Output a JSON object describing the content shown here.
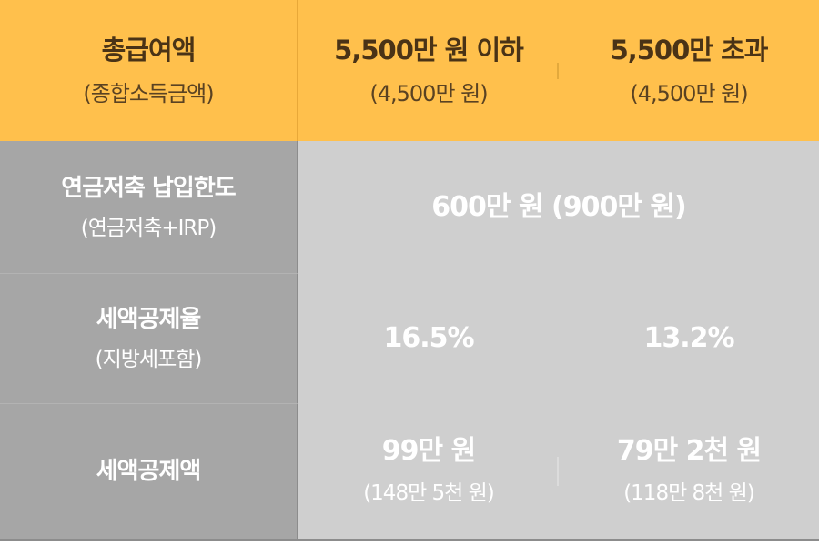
{
  "header": {
    "label_title": "총급여액",
    "label_sub": "(종합소득금액)",
    "col1_title": "5,500만 원 이하",
    "col1_sub": "(4,500만 원)",
    "col2_title": "5,500만 초과",
    "col2_sub": "(4,500만 원)"
  },
  "rows": [
    {
      "label_title": "연금저축 납입한도",
      "label_sub": "(연금저축+IRP)",
      "value": "600만 원 (900만 원)"
    },
    {
      "label_title": "세액공제율",
      "label_sub": "(지방세포함)",
      "col1": "16.5%",
      "col2": "13.2%"
    },
    {
      "label_title": "세액공제액",
      "col1_title": "99만 원",
      "col1_sub": "(148만 5천 원)",
      "col2_title": "79만 2천 원",
      "col2_sub": "(118만 8천 원)"
    }
  ],
  "colors": {
    "header_bg": "#ffc04c",
    "label_bg": "#a6a6a6",
    "value_bg": "#cfcfcf",
    "header_text": "#4a3316"
  }
}
